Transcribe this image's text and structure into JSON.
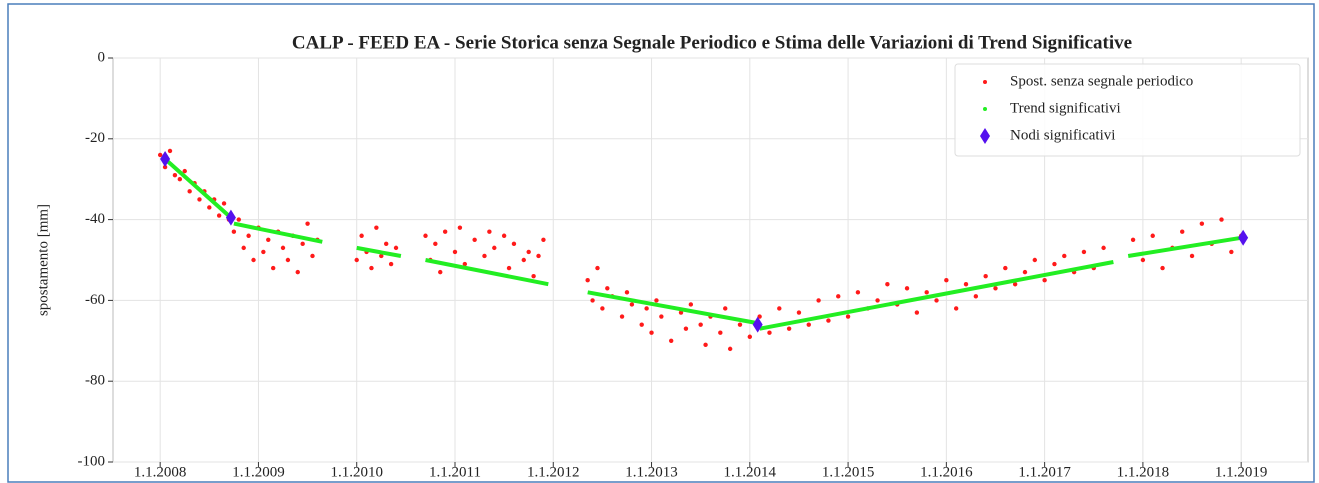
{
  "chart_data": {
    "type": "scatter",
    "title": "CALP - FEED EA - Serie Storica senza Segnale Periodico e Stima delle Variazioni di Trend Significative",
    "y_label": "spostamento [mm]",
    "xlim": [
      2007.52,
      2019.68
    ],
    "xticks": [
      {
        "value": 2008,
        "label": "1.1.2008"
      },
      {
        "value": 2009,
        "label": "1.1.2009"
      },
      {
        "value": 2010,
        "label": "1.1.2010"
      },
      {
        "value": 2011,
        "label": "1.1.2011"
      },
      {
        "value": 2012,
        "label": "1.1.2012"
      },
      {
        "value": 2013,
        "label": "1.1.2013"
      },
      {
        "value": 2014,
        "label": "1.1.2014"
      },
      {
        "value": 2015,
        "label": "1.1.2015"
      },
      {
        "value": 2016,
        "label": "1.1.2016"
      },
      {
        "value": 2017,
        "label": "1.1.2017"
      },
      {
        "value": 2018,
        "label": "1.1.2018"
      },
      {
        "value": 2019,
        "label": "1.1.2019"
      }
    ],
    "ylim": [
      -100,
      0
    ],
    "yticks": [
      -100,
      -80,
      -60,
      -40,
      -20,
      0
    ],
    "grid": true,
    "legend": "upper right",
    "series": [
      {
        "name": "Spost. senza segnale periodico",
        "color": "#ff1a1a",
        "marker": "dot",
        "x": [
          2008.0,
          2008.05,
          2008.1,
          2008.15,
          2008.2,
          2008.25,
          2008.3,
          2008.35,
          2008.4,
          2008.45,
          2008.5,
          2008.55,
          2008.6,
          2008.65,
          2008.7,
          2008.75,
          2008.8,
          2008.85,
          2008.9,
          2008.95,
          2009.0,
          2009.05,
          2009.1,
          2009.15,
          2009.2,
          2009.25,
          2009.3,
          2009.35,
          2009.4,
          2009.45,
          2009.5,
          2009.55,
          2009.6,
          2010.0,
          2010.05,
          2010.1,
          2010.15,
          2010.2,
          2010.25,
          2010.3,
          2010.35,
          2010.4,
          2010.7,
          2010.75,
          2010.8,
          2010.85,
          2010.9,
          2011.0,
          2011.05,
          2011.1,
          2011.2,
          2011.3,
          2011.35,
          2011.4,
          2011.5,
          2011.55,
          2011.6,
          2011.7,
          2011.75,
          2011.8,
          2011.85,
          2011.9,
          2012.35,
          2012.4,
          2012.45,
          2012.5,
          2012.55,
          2012.6,
          2012.7,
          2012.75,
          2012.8,
          2012.9,
          2012.95,
          2013.0,
          2013.05,
          2013.1,
          2013.2,
          2013.3,
          2013.35,
          2013.4,
          2013.5,
          2013.55,
          2013.6,
          2013.7,
          2013.75,
          2013.8,
          2013.9,
          2014.0,
          2014.1,
          2014.2,
          2014.3,
          2014.4,
          2014.5,
          2014.6,
          2014.7,
          2014.8,
          2014.9,
          2015.0,
          2015.1,
          2015.2,
          2015.3,
          2015.4,
          2015.5,
          2015.6,
          2015.7,
          2015.8,
          2015.9,
          2016.0,
          2016.1,
          2016.2,
          2016.3,
          2016.4,
          2016.5,
          2016.6,
          2016.7,
          2016.8,
          2016.9,
          2017.0,
          2017.1,
          2017.2,
          2017.3,
          2017.4,
          2017.5,
          2017.6,
          2017.9,
          2018.0,
          2018.1,
          2018.2,
          2018.3,
          2018.4,
          2018.5,
          2018.6,
          2018.7,
          2018.8,
          2018.9,
          2019.0
        ],
        "values": [
          -24,
          -27,
          -23,
          -29,
          -30,
          -28,
          -33,
          -31,
          -35,
          -33,
          -37,
          -35,
          -39,
          -36,
          -40,
          -43,
          -40,
          -47,
          -44,
          -50,
          -42,
          -48,
          -45,
          -52,
          -43,
          -47,
          -50,
          -44,
          -53,
          -46,
          -41,
          -49,
          -45,
          -50,
          -44,
          -48,
          -52,
          -42,
          -49,
          -46,
          -51,
          -47,
          -44,
          -50,
          -46,
          -53,
          -43,
          -48,
          -42,
          -51,
          -45,
          -49,
          -43,
          -47,
          -44,
          -52,
          -46,
          -50,
          -48,
          -54,
          -49,
          -45,
          -55,
          -60,
          -52,
          -62,
          -57,
          -59,
          -64,
          -58,
          -61,
          -66,
          -62,
          -68,
          -60,
          -64,
          -70,
          -63,
          -67,
          -61,
          -66,
          -71,
          -64,
          -68,
          -62,
          -72,
          -66,
          -69,
          -64,
          -68,
          -62,
          -67,
          -63,
          -66,
          -60,
          -65,
          -59,
          -64,
          -58,
          -62,
          -60,
          -56,
          -61,
          -57,
          -63,
          -58,
          -60,
          -55,
          -62,
          -56,
          -59,
          -54,
          -57,
          -52,
          -56,
          -53,
          -50,
          -55,
          -51,
          -49,
          -53,
          -48,
          -52,
          -47,
          -45,
          -50,
          -44,
          -52,
          -47,
          -43,
          -49,
          -41,
          -46,
          -40,
          -48,
          -44
        ]
      },
      {
        "name": "Trend significativi",
        "color": "#22ee22",
        "marker": "line",
        "x": [
          2008.05,
          2008.72,
          null,
          2008.75,
          2009.65,
          null,
          2010.0,
          2010.45,
          null,
          2010.7,
          2011.95,
          null,
          2012.35,
          2014.05,
          null,
          2014.1,
          2017.7,
          null,
          2017.85,
          2019.0
        ],
        "values": [
          -25,
          -39.5,
          null,
          -41,
          -45.5,
          null,
          -47,
          -49,
          null,
          -50,
          -56,
          null,
          -58,
          -65.5,
          null,
          -67,
          -50.5,
          null,
          -49,
          -44.5
        ]
      },
      {
        "name": "Nodi significativi",
        "color": "#5511ee",
        "marker": "diamond",
        "x": [
          2008.05,
          2008.72,
          2014.08,
          2019.02
        ],
        "values": [
          -25,
          -39.5,
          -66,
          -44.5
        ]
      }
    ]
  }
}
